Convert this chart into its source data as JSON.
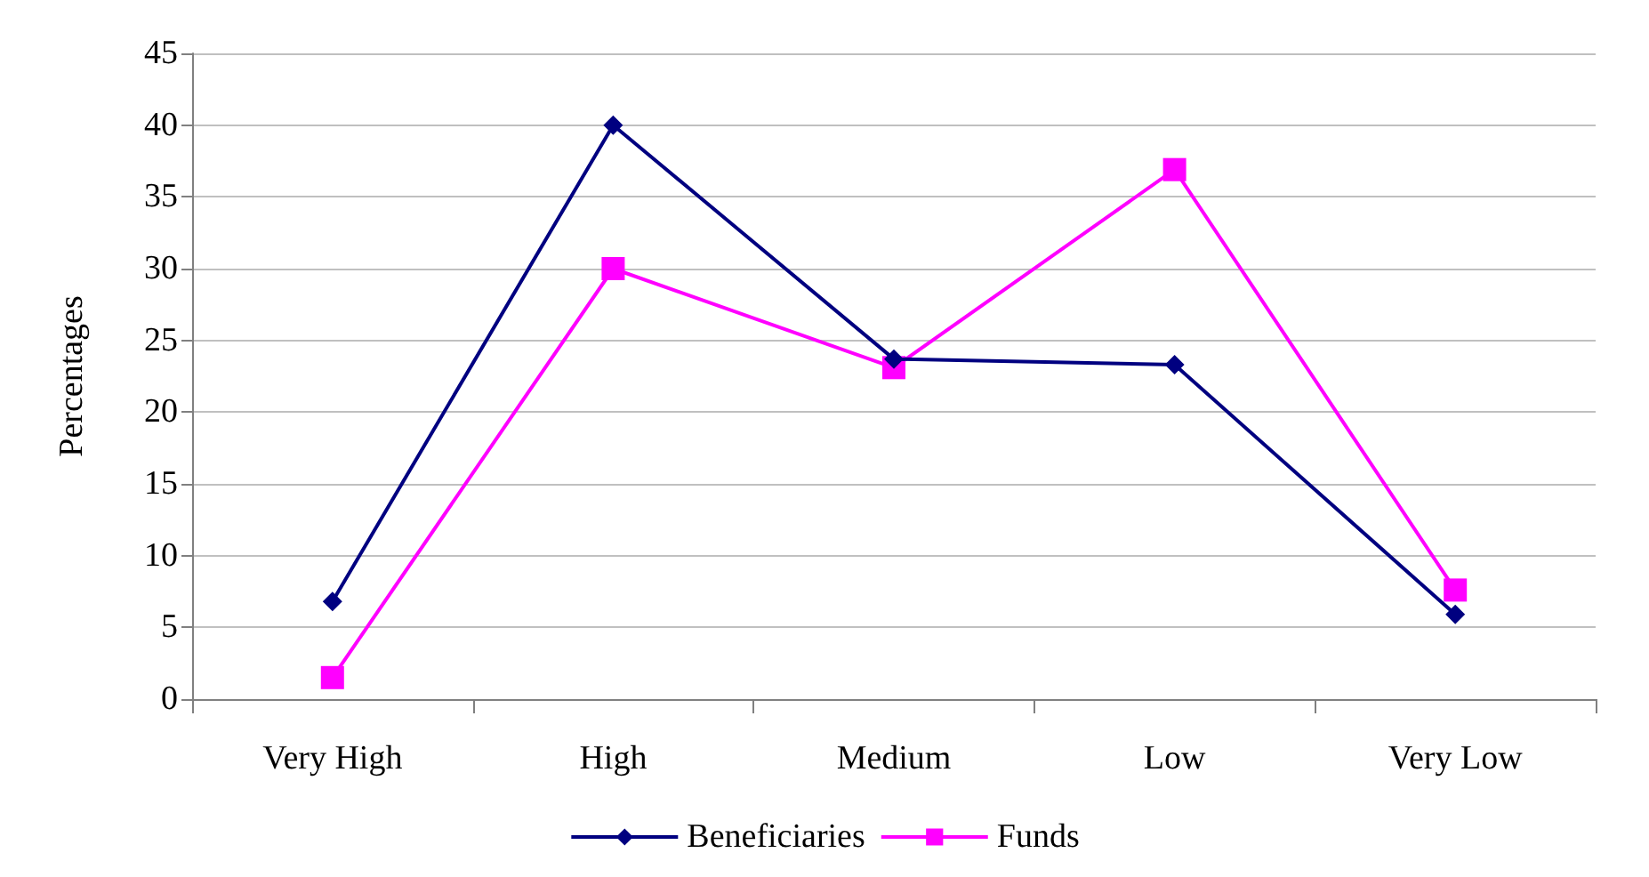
{
  "chart_data": {
    "type": "line",
    "ylabel": "Percentages",
    "categories": [
      "Very High",
      "High",
      "Medium",
      "Low",
      "Very Low"
    ],
    "series": [
      {
        "name": "Beneficiaries",
        "color": "#000080",
        "marker": "diamond",
        "values": [
          6.8,
          40,
          23.7,
          23.3,
          5.9
        ]
      },
      {
        "name": "Funds",
        "color": "#ff00ff",
        "marker": "square",
        "values": [
          1.5,
          30,
          23.1,
          36.9,
          7.6
        ]
      }
    ],
    "ylim": [
      0,
      45
    ],
    "yticks": [
      0,
      5,
      10,
      15,
      20,
      25,
      30,
      35,
      40,
      45
    ],
    "grid": "y",
    "legend": "bottom",
    "line_style": "solid"
  }
}
